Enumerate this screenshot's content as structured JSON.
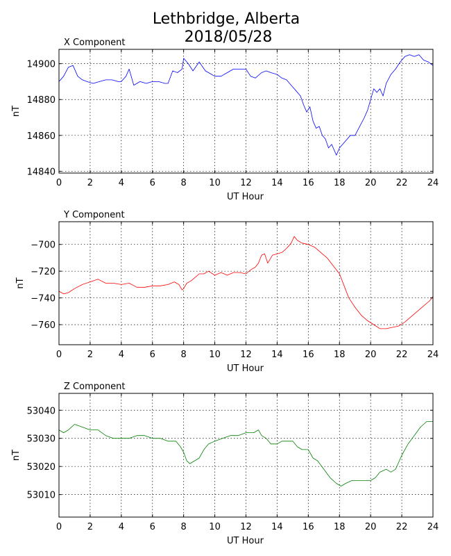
{
  "figure": {
    "title_line1": "Lethbridge, Alberta",
    "title_line2": "2018/05/28"
  },
  "chart_data": [
    {
      "type": "line",
      "title": "X Component",
      "xlabel": "UT Hour",
      "ylabel": "nT",
      "xlim": [
        0,
        24
      ],
      "ylim": [
        14839,
        14908
      ],
      "xticks": [
        0,
        2,
        4,
        6,
        8,
        10,
        12,
        14,
        16,
        18,
        20,
        22,
        24
      ],
      "yticks": [
        14840,
        14860,
        14880,
        14900
      ],
      "grid": true,
      "series": [
        {
          "color": "#0000ff",
          "x": [
            0,
            0.3,
            0.6,
            0.9,
            1.2,
            1.5,
            1.8,
            2.2,
            2.6,
            3.0,
            3.4,
            3.8,
            4.0,
            4.3,
            4.5,
            4.8,
            5.2,
            5.6,
            6.0,
            6.4,
            6.8,
            7.0,
            7.3,
            7.6,
            7.9,
            8.0,
            8.3,
            8.6,
            9.0,
            9.4,
            9.8,
            10.0,
            10.4,
            10.8,
            11.2,
            11.6,
            12.0,
            12.3,
            12.6,
            13.0,
            13.3,
            13.6,
            14.0,
            14.3,
            14.6,
            14.9,
            15.2,
            15.5,
            15.7,
            15.9,
            16.1,
            16.3,
            16.5,
            16.7,
            16.9,
            17.1,
            17.3,
            17.5,
            17.7,
            17.8,
            18.0,
            18.2,
            18.4,
            18.7,
            19.0,
            19.3,
            19.6,
            19.8,
            20.0,
            20.2,
            20.4,
            20.6,
            20.8,
            21.0,
            21.3,
            21.6,
            21.9,
            22.2,
            22.5,
            22.8,
            23.1,
            23.4,
            23.7,
            24.0
          ],
          "y": [
            14890,
            14893,
            14898,
            14899,
            14893,
            14891,
            14890,
            14889,
            14890,
            14891,
            14891,
            14890,
            14890,
            14893,
            14897,
            14888,
            14890,
            14889,
            14890,
            14890,
            14889,
            14889,
            14896,
            14895,
            14897,
            14903,
            14900,
            14896,
            14901,
            14896,
            14894,
            14893,
            14893,
            14895,
            14897,
            14897,
            14897,
            14893,
            14892,
            14895,
            14896,
            14895,
            14894,
            14892,
            14891,
            14888,
            14885,
            14882,
            14877,
            14873,
            14876,
            14868,
            14864,
            14865,
            14860,
            14858,
            14853,
            14855,
            14851,
            14849,
            14853,
            14855,
            14857,
            14860,
            14860,
            14865,
            14870,
            14874,
            14880,
            14886,
            14884,
            14886,
            14882,
            14889,
            14894,
            14897,
            14901,
            14904,
            14905,
            14904,
            14905,
            14902,
            14901,
            14899
          ]
        }
      ]
    },
    {
      "type": "line",
      "title": "Y Component",
      "xlabel": "UT Hour",
      "ylabel": "nT",
      "xlim": [
        0,
        24
      ],
      "ylim": [
        -775,
        -683
      ],
      "xticks": [
        0,
        2,
        4,
        6,
        8,
        10,
        12,
        14,
        16,
        18,
        20,
        22,
        24
      ],
      "yticks": [
        -700,
        -720,
        -740,
        -760
      ],
      "grid": true,
      "series": [
        {
          "color": "#ff0000",
          "x": [
            0,
            0.3,
            0.6,
            1.0,
            1.5,
            2.0,
            2.5,
            3.0,
            3.5,
            4.0,
            4.5,
            5.0,
            5.5,
            6.0,
            6.5,
            7.0,
            7.4,
            7.7,
            7.9,
            8.0,
            8.2,
            8.5,
            8.8,
            9.0,
            9.3,
            9.6,
            10.0,
            10.4,
            10.8,
            11.2,
            11.6,
            12.0,
            12.3,
            12.6,
            12.8,
            13.0,
            13.2,
            13.4,
            13.7,
            14.0,
            14.3,
            14.6,
            14.9,
            15.1,
            15.3,
            15.6,
            16.0,
            16.4,
            16.8,
            17.2,
            17.6,
            18.0,
            18.3,
            18.6,
            19.0,
            19.4,
            19.8,
            20.2,
            20.6,
            21.0,
            21.4,
            21.8,
            22.2,
            22.6,
            23.0,
            23.4,
            23.8,
            24.0
          ],
          "y": [
            -735,
            -737,
            -736,
            -733,
            -730,
            -728,
            -726,
            -729,
            -729,
            -730,
            -729,
            -732,
            -732,
            -731,
            -731,
            -730,
            -728,
            -730,
            -734,
            -733,
            -729,
            -727,
            -724,
            -722,
            -722,
            -720,
            -723,
            -721,
            -723,
            -721,
            -721,
            -722,
            -719,
            -717,
            -714,
            -708,
            -707,
            -714,
            -708,
            -707,
            -706,
            -703,
            -699,
            -694,
            -697,
            -699,
            -700,
            -702,
            -706,
            -710,
            -716,
            -722,
            -731,
            -740,
            -747,
            -753,
            -757,
            -760,
            -763,
            -763,
            -762,
            -761,
            -758,
            -754,
            -750,
            -746,
            -742,
            -739
          ]
        }
      ]
    },
    {
      "type": "line",
      "title": "Z Component",
      "xlabel": "UT Hour",
      "ylabel": "nT",
      "xlim": [
        0,
        24
      ],
      "ylim": [
        53002,
        53046
      ],
      "xticks": [
        0,
        2,
        4,
        6,
        8,
        10,
        12,
        14,
        16,
        18,
        20,
        22,
        24
      ],
      "yticks": [
        53010,
        53020,
        53030,
        53040
      ],
      "grid": true,
      "series": [
        {
          "color": "#008000",
          "x": [
            0,
            0.3,
            0.6,
            1.0,
            1.5,
            2.0,
            2.5,
            3.0,
            3.5,
            4.0,
            4.5,
            5.0,
            5.5,
            6.0,
            6.5,
            7.0,
            7.5,
            7.8,
            8.0,
            8.2,
            8.4,
            8.7,
            9.0,
            9.3,
            9.6,
            10.0,
            10.5,
            11.0,
            11.5,
            12.0,
            12.5,
            12.8,
            13.0,
            13.3,
            13.6,
            14.0,
            14.3,
            14.6,
            15.0,
            15.3,
            15.6,
            16.0,
            16.3,
            16.6,
            17.0,
            17.4,
            17.8,
            18.1,
            18.4,
            18.8,
            19.2,
            19.6,
            20.0,
            20.3,
            20.6,
            21.0,
            21.3,
            21.6,
            22.0,
            22.4,
            22.8,
            23.2,
            23.6,
            23.8,
            24.0
          ],
          "y": [
            53033,
            53032,
            53033,
            53035,
            53034,
            53033,
            53033,
            53031,
            53030,
            53030,
            53030,
            53031,
            53031,
            53030,
            53030,
            53029,
            53029,
            53027,
            53025,
            53022,
            53021,
            53022,
            53023,
            53026,
            53028,
            53029,
            53030,
            53031,
            53031,
            53032,
            53032,
            53033,
            53031,
            53030,
            53028,
            53028,
            53029,
            53029,
            53029,
            53027,
            53026,
            53026,
            53023,
            53022,
            53019,
            53016,
            53014,
            53013,
            53014,
            53015,
            53015,
            53015,
            53015,
            53016,
            53018,
            53019,
            53018,
            53019,
            53024,
            53028,
            53031,
            53034,
            53036,
            53036,
            53036
          ]
        }
      ]
    }
  ]
}
